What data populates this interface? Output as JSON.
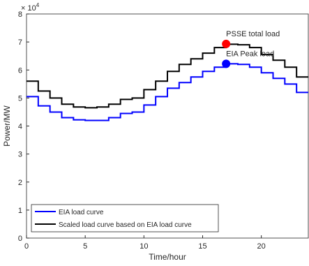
{
  "chart_data": {
    "type": "stairs",
    "xlabel": "Time/hour",
    "ylabel": "Power/MW",
    "y_exponent_label": "× 10",
    "y_exponent": "4",
    "x": [
      0,
      1,
      2,
      3,
      4,
      5,
      6,
      7,
      8,
      9,
      10,
      11,
      12,
      13,
      14,
      15,
      16,
      17,
      18,
      19,
      20,
      21,
      22,
      23
    ],
    "series": [
      {
        "name": "EIA load curve",
        "color": "#0000ff",
        "values": [
          50500,
          47200,
          45000,
          43000,
          42200,
          42000,
          42000,
          43000,
          44500,
          45000,
          47500,
          50500,
          53500,
          55500,
          57500,
          59500,
          61000,
          62200,
          62000,
          61000,
          59000,
          57000,
          55000,
          52000
        ]
      },
      {
        "name": "Scaled load curve based on EIA load curve",
        "color": "#000000",
        "values": [
          56000,
          52500,
          50000,
          47800,
          46800,
          46500,
          46800,
          47800,
          49500,
          50000,
          53000,
          56000,
          59500,
          62000,
          64000,
          66000,
          68000,
          69200,
          69000,
          68000,
          65500,
          63500,
          61000,
          57500
        ]
      }
    ],
    "points": [
      {
        "label": "PSSE total load",
        "x": 17,
        "y": 69300,
        "color": "#ff0000"
      },
      {
        "label": "EIA Peak load",
        "x": 17,
        "y": 62200,
        "color": "#0000ff"
      }
    ],
    "xlim": [
      0,
      24
    ],
    "xticks": [
      0,
      5,
      10,
      15,
      20
    ],
    "ylim": [
      0,
      80000
    ],
    "yticks": [
      {
        "value": 0,
        "label": "0"
      },
      {
        "value": 10000,
        "label": "1"
      },
      {
        "value": 20000,
        "label": "2"
      },
      {
        "value": 30000,
        "label": "3"
      },
      {
        "value": 40000,
        "label": "4"
      },
      {
        "value": 50000,
        "label": "5"
      },
      {
        "value": 60000,
        "label": "6"
      },
      {
        "value": 70000,
        "label": "7"
      },
      {
        "value": 80000,
        "label": "8"
      }
    ],
    "legend": "lower left"
  }
}
